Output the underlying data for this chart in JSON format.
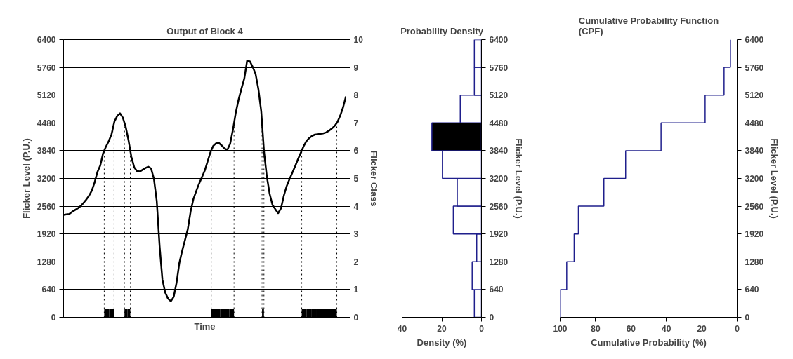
{
  "chart_data": [
    {
      "type": "line",
      "title": "Output of Block 4",
      "xlabel": "Time",
      "ylabel": "Flicker Level (P.U.)",
      "y2label": "Flicker Class",
      "color": "#000000",
      "categories": [
        null,
        null,
        null,
        null,
        null,
        null,
        null,
        null,
        null,
        null,
        null,
        null,
        null,
        null,
        null,
        null,
        null,
        null,
        null,
        null,
        null,
        null,
        null,
        null,
        null,
        null,
        null,
        null,
        null,
        null,
        null,
        null,
        null,
        null,
        null,
        null,
        null,
        null,
        null,
        null,
        null,
        null,
        null,
        null,
        null,
        null,
        null,
        null,
        null,
        null,
        null,
        null,
        null,
        null,
        null,
        null,
        null,
        null,
        null,
        null,
        null,
        null,
        null,
        null,
        null,
        null,
        null,
        null,
        null,
        null,
        null,
        null,
        null,
        null,
        null,
        null,
        null,
        null,
        null,
        null,
        null,
        null,
        null,
        null,
        null,
        null,
        null,
        null,
        null,
        null,
        null,
        null,
        null,
        null,
        null,
        null,
        null,
        null,
        null,
        null,
        null
      ],
      "values": [
        2360,
        2370,
        2380,
        2430,
        2470,
        2510,
        2560,
        2630,
        2710,
        2800,
        2920,
        3110,
        3350,
        3500,
        3780,
        3930,
        4060,
        4220,
        4510,
        4640,
        4700,
        4600,
        4390,
        4080,
        3700,
        3460,
        3370,
        3360,
        3400,
        3440,
        3470,
        3430,
        3190,
        2680,
        1650,
        870,
        570,
        430,
        370,
        470,
        790,
        1250,
        1530,
        1780,
        2030,
        2440,
        2730,
        2910,
        3080,
        3230,
        3380,
        3590,
        3800,
        3950,
        4010,
        4020,
        3960,
        3890,
        3860,
        4000,
        4330,
        4720,
        5020,
        5270,
        5500,
        5910,
        5900,
        5770,
        5610,
        5260,
        4750,
        3810,
        3240,
        2840,
        2590,
        2490,
        2400,
        2510,
        2800,
        3020,
        3180,
        3330,
        3480,
        3640,
        3790,
        3940,
        4060,
        4130,
        4180,
        4210,
        4220,
        4230,
        4240,
        4260,
        4300,
        4350,
        4410,
        4500,
        4650,
        4840,
        5090
      ],
      "ylim": [
        0,
        6400
      ],
      "yticks": [
        0,
        640,
        1280,
        1920,
        2560,
        3200,
        3840,
        4480,
        5120,
        5760,
        6400
      ],
      "y2lim": [
        0,
        10
      ],
      "y2ticks": [
        0,
        1,
        2,
        3,
        4,
        5,
        6,
        7,
        8,
        9,
        10
      ],
      "grid": "y",
      "tick_labels": "y"
    },
    {
      "type": "histogram",
      "orientation": "horizontal",
      "title": "Probability Density",
      "xlabel": "Density (%)",
      "ylabel": "Flicker Level (P.U.)",
      "color": "#1f1f8c",
      "bins": [
        0,
        640,
        1280,
        1920,
        2560,
        3200,
        3840,
        4480,
        5120,
        5760,
        6400
      ],
      "values": [
        3.6,
        4.7,
        2.4,
        14.2,
        12.2,
        19.7,
        25.0,
        10.7,
        3.6,
        3.6
      ],
      "colors": [
        "#ffffff",
        "#ffffff",
        "#ffffff",
        "#ffffff",
        "#ffffff",
        "#ffffff",
        "#000000",
        "#ffffff",
        "#ffffff",
        "#ffffff"
      ],
      "xlim": [
        40,
        0
      ],
      "xticks": [
        40,
        20,
        0
      ],
      "ylim": [
        0,
        6400
      ],
      "yticks": [
        0,
        640,
        1280,
        1920,
        2560,
        3200,
        3840,
        4480,
        5120,
        5760,
        6400
      ]
    },
    {
      "type": "step",
      "title": "Cumulative Probability Function (CPF)",
      "xlabel": "Cumulative Probability (%)",
      "ylabel": "Flicker Level (P.U.)",
      "color": "#1f1f8c",
      "x": [
        100,
        96.3,
        92.1,
        89.7,
        75.3,
        63.0,
        43.0,
        18.1,
        7.4,
        3.8,
        3.8
      ],
      "values": [
        0,
        640,
        1280,
        1920,
        2560,
        3200,
        3840,
        4480,
        5120,
        5760,
        6400
      ],
      "xlim": [
        100,
        0
      ],
      "xticks": [
        100,
        80,
        60,
        40,
        20,
        0
      ],
      "ylim": [
        0,
        6400
      ],
      "yticks": [
        0,
        640,
        1280,
        1920,
        2560,
        3200,
        3840,
        4480,
        5120,
        5760,
        6400
      ]
    }
  ]
}
